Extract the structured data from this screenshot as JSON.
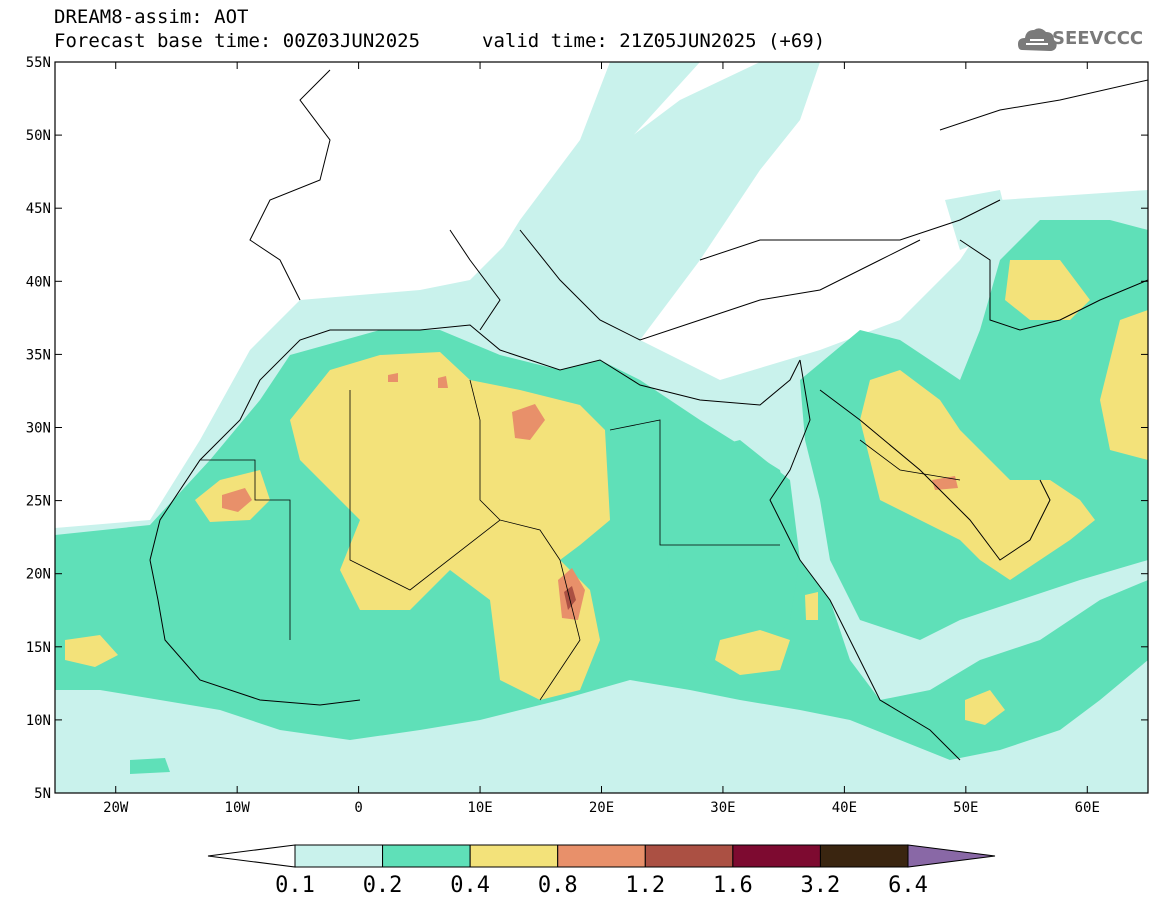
{
  "header": {
    "model_title": "DREAM8-assim: AOT",
    "base_time": "Forecast base time: 00Z03JUN2025",
    "valid_time": "valid time: 21Z05JUN2025 (+69)",
    "logo_text": "SEEVCCC",
    "logo_icon": "cloud-icon"
  },
  "map": {
    "lon_range": [
      -25,
      65
    ],
    "lat_range": [
      5,
      55
    ],
    "lat_ticks": [
      "5N",
      "10N",
      "15N",
      "20N",
      "25N",
      "30N",
      "35N",
      "40N",
      "45N",
      "50N",
      "55N"
    ],
    "lon_ticks": [
      "20W",
      "10W",
      "0",
      "10E",
      "20E",
      "30E",
      "40E",
      "50E",
      "60E"
    ]
  },
  "colorbar": {
    "levels": [
      "0.1",
      "0.2",
      "0.4",
      "0.8",
      "1.2",
      "1.6",
      "3.2",
      "6.4"
    ],
    "colors": [
      "#c9f2ec",
      "#5fe0b8",
      "#f3e27a",
      "#e8906a",
      "#ab5043",
      "#7d0a30",
      "#3a2510",
      "#8968a6"
    ],
    "below_color": "#ffffff"
  }
}
